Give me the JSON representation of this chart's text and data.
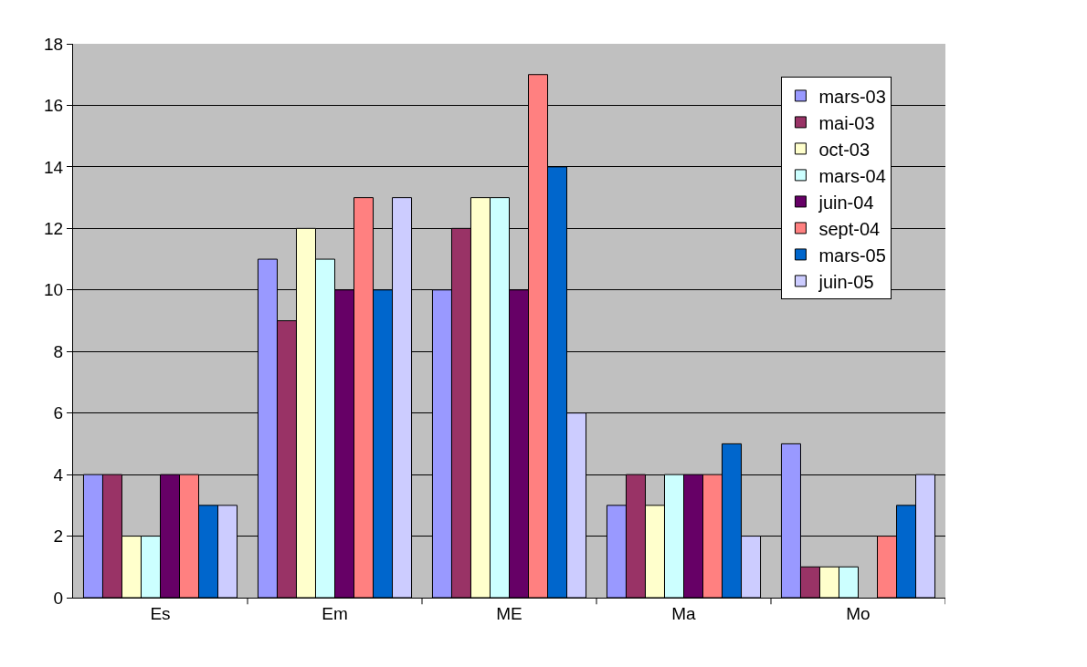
{
  "chart_data": {
    "type": "bar",
    "categories": [
      "Es",
      "Em",
      "ME",
      "Ma",
      "Mo"
    ],
    "series": [
      {
        "name": "mars-03",
        "color": "#9999ff",
        "values": [
          4,
          11,
          10,
          3,
          5
        ]
      },
      {
        "name": "mai-03",
        "color": "#993366",
        "values": [
          4,
          9,
          12,
          4,
          1
        ]
      },
      {
        "name": "oct-03",
        "color": "#ffffcc",
        "values": [
          2,
          12,
          13,
          3,
          1
        ]
      },
      {
        "name": "mars-04",
        "color": "#ccffff",
        "values": [
          2,
          11,
          13,
          4,
          1
        ]
      },
      {
        "name": "juin-04",
        "color": "#660066",
        "values": [
          4,
          10,
          10,
          4,
          null
        ]
      },
      {
        "name": "sept-04",
        "color": "#ff8080",
        "values": [
          4,
          13,
          17,
          4,
          2
        ]
      },
      {
        "name": "mars-05",
        "color": "#0066cc",
        "values": [
          3,
          10,
          14,
          5,
          3
        ]
      },
      {
        "name": "juin-05",
        "color": "#ccccff",
        "values": [
          3,
          13,
          6,
          2,
          4
        ]
      }
    ],
    "ylim": [
      0,
      18
    ],
    "yticks": [
      0,
      2,
      4,
      6,
      8,
      10,
      12,
      14,
      16,
      18
    ],
    "grid": "y",
    "legend": "top right"
  }
}
